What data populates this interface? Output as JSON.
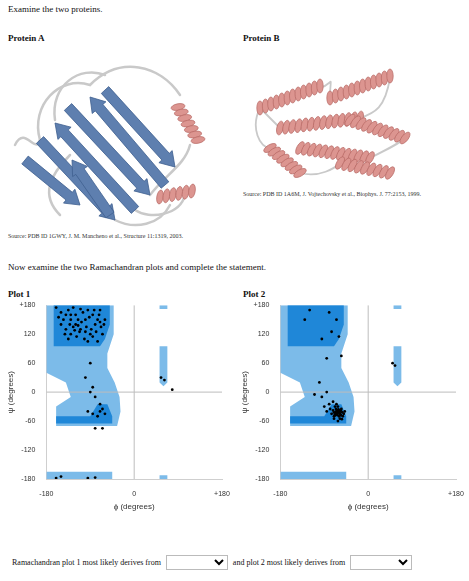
{
  "header": {
    "instruction": "Examine the two proteins."
  },
  "proteins": [
    {
      "label": "Protein A",
      "source": "Source: PDB ID 1GWY, J. M. Mancheno et al., Structure 11:1319, 2003."
    },
    {
      "label": "Protein B",
      "source": "Source: PDB ID 1A6M, J. Vojtechovsky et al., Biophys. J. 77:2153, 1999."
    }
  ],
  "prompt": "Now examine the two Ramachandran plots and complete the statement.",
  "chart_data": [
    {
      "type": "scatter",
      "title": "Plot 1",
      "x_label": "ϕ (degrees)",
      "y_label": "ψ (degrees)",
      "xlim": [
        -180,
        180
      ],
      "ylim": [
        -180,
        180
      ],
      "xticks": [
        -180,
        0,
        {
          "value": 180,
          "label": "+180"
        }
      ],
      "yticks": [
        {
          "value": 180,
          "label": "+180"
        },
        120,
        60,
        0,
        -60,
        -120,
        -180
      ],
      "grid": false,
      "marker": "circle",
      "color": "#000000",
      "x": [
        -140,
        -130,
        -120,
        -110,
        -100,
        -90,
        -120,
        -135,
        -80,
        -75,
        -70,
        -85,
        -95,
        -105,
        -115,
        -125,
        -145,
        -150,
        -160,
        -140,
        -130,
        -118,
        -108,
        -98,
        -88,
        -78,
        -68,
        -62,
        -72,
        -82,
        -92,
        -102,
        -112,
        -122,
        -132,
        -142,
        -150,
        -155,
        -65,
        -60,
        -100,
        -110,
        -125,
        -135,
        -85,
        -95,
        -75,
        -70,
        -130,
        -115,
        -90,
        -100,
        -85,
        -90,
        -80,
        -70,
        -65,
        -60,
        -75,
        -85,
        -95,
        -70,
        -80,
        -65,
        55,
        62,
        78,
        -160,
        -150,
        -95,
        -80
      ],
      "values": [
        160,
        150,
        140,
        130,
        125,
        120,
        160,
        170,
        140,
        150,
        145,
        160,
        170,
        165,
        150,
        135,
        150,
        165,
        175,
        130,
        120,
        115,
        145,
        135,
        130,
        125,
        135,
        140,
        160,
        170,
        155,
        110,
        125,
        128,
        140,
        120,
        140,
        155,
        120,
        150,
        150,
        172,
        175,
        110,
        115,
        105,
        105,
        170,
        160,
        138,
        60,
        30,
        10,
        0,
        -10,
        -25,
        -35,
        -45,
        -50,
        -45,
        -40,
        -40,
        -75,
        -75,
        30,
        25,
        5,
        -178,
        -175,
        -178,
        -177
      ],
      "regions": [
        {
          "color": "#7cbbe9",
          "polygons": [
            [
              [
                -180,
                180
              ],
              [
                -42,
                180
              ],
              [
                -42,
                120
              ],
              [
                -55,
                80
              ],
              [
                -55,
                50
              ],
              [
                -40,
                20
              ],
              [
                -30,
                -10
              ],
              [
                -28,
                -40
              ],
              [
                -35,
                -70
              ],
              [
                -160,
                -70
              ],
              [
                -160,
                -30
              ],
              [
                -130,
                -10
              ],
              [
                -140,
                20
              ],
              [
                -180,
                40
              ]
            ],
            [
              [
                -180,
                -180
              ],
              [
                -45,
                -180
              ],
              [
                -45,
                -165
              ],
              [
                -180,
                -165
              ]
            ],
            [
              [
                52,
                95
              ],
              [
                68,
                95
              ],
              [
                68,
                20
              ],
              [
                60,
                12
              ],
              [
                52,
                20
              ]
            ],
            [
              [
                52,
                180
              ],
              [
                68,
                180
              ],
              [
                68,
                172
              ],
              [
                52,
                172
              ]
            ],
            [
              [
                52,
                -180
              ],
              [
                68,
                -180
              ],
              [
                68,
                -172
              ],
              [
                52,
                -172
              ]
            ]
          ]
        },
        {
          "color": "#1f87d8",
          "polygons": [
            [
              [
                -165,
                180
              ],
              [
                -50,
                180
              ],
              [
                -50,
                140
              ],
              [
                -60,
                110
              ],
              [
                -70,
                95
              ],
              [
                -165,
                95
              ]
            ],
            [
              [
                -160,
                -50
              ],
              [
                -90,
                -50
              ],
              [
                -75,
                -25
              ],
              [
                -55,
                -25
              ],
              [
                -45,
                -50
              ],
              [
                -45,
                -65
              ],
              [
                -160,
                -65
              ]
            ]
          ]
        }
      ]
    },
    {
      "type": "scatter",
      "title": "Plot 2",
      "x_label": "ϕ (degrees)",
      "y_label": "ψ (degrees)",
      "xlim": [
        -180,
        180
      ],
      "ylim": [
        -180,
        180
      ],
      "xticks": [
        -180,
        0,
        {
          "value": 180,
          "label": "+180"
        }
      ],
      "yticks": [
        {
          "value": 180,
          "label": "+180"
        },
        120,
        60,
        0,
        -60,
        -120,
        -180
      ],
      "grid": false,
      "marker": "circle",
      "color": "#000000",
      "x": [
        -120,
        -130,
        -80,
        -65,
        -95,
        -75,
        -60,
        -85,
        -55,
        -100,
        -85,
        -95,
        -110,
        -65,
        -62,
        -60,
        -58,
        -66,
        -70,
        -63,
        -57,
        -55,
        -68,
        -72,
        -60,
        -64,
        -59,
        -61,
        -67,
        -53,
        -56,
        -70,
        -75,
        -78,
        -80,
        -72,
        -65,
        -62,
        -58,
        -52,
        -50,
        -62,
        -70,
        -85,
        -90,
        -60,
        -66,
        -64,
        -68,
        -56,
        -54,
        -48,
        50,
        55
      ],
      "values": [
        170,
        150,
        165,
        150,
        110,
        125,
        115,
        70,
        75,
        20,
        0,
        -10,
        -5,
        -40,
        -42,
        -38,
        -45,
        -35,
        -42,
        -47,
        -40,
        -35,
        -30,
        -38,
        -50,
        -44,
        -43,
        -36,
        -48,
        -42,
        -48,
        -50,
        -45,
        -35,
        -25,
        -20,
        -25,
        -30,
        -55,
        -50,
        -45,
        -60,
        -55,
        -40,
        -30,
        -40,
        -42,
        -38,
        -46,
        -38,
        -56,
        -40,
        60,
        55
      ],
      "regions": [
        {
          "color": "#7cbbe9",
          "polygons": [
            [
              [
                -180,
                180
              ],
              [
                -42,
                180
              ],
              [
                -42,
                120
              ],
              [
                -55,
                80
              ],
              [
                -55,
                50
              ],
              [
                -40,
                20
              ],
              [
                -30,
                -10
              ],
              [
                -28,
                -40
              ],
              [
                -35,
                -70
              ],
              [
                -160,
                -70
              ],
              [
                -160,
                -30
              ],
              [
                -130,
                -10
              ],
              [
                -140,
                20
              ],
              [
                -180,
                40
              ]
            ],
            [
              [
                -180,
                -180
              ],
              [
                -45,
                -180
              ],
              [
                -45,
                -165
              ],
              [
                -180,
                -165
              ]
            ],
            [
              [
                52,
                95
              ],
              [
                68,
                95
              ],
              [
                68,
                20
              ],
              [
                60,
                12
              ],
              [
                52,
                20
              ]
            ],
            [
              [
                52,
                180
              ],
              [
                68,
                180
              ],
              [
                68,
                172
              ],
              [
                52,
                172
              ]
            ],
            [
              [
                52,
                -180
              ],
              [
                68,
                -180
              ],
              [
                68,
                -172
              ],
              [
                52,
                -172
              ]
            ]
          ]
        },
        {
          "color": "#1f87d8",
          "polygons": [
            [
              [
                -165,
                180
              ],
              [
                -50,
                180
              ],
              [
                -50,
                140
              ],
              [
                -60,
                110
              ],
              [
                -70,
                95
              ],
              [
                -165,
                95
              ]
            ],
            [
              [
                -160,
                -50
              ],
              [
                -90,
                -50
              ],
              [
                -75,
                -25
              ],
              [
                -55,
                -25
              ],
              [
                -45,
                -50
              ],
              [
                -45,
                -65
              ],
              [
                -160,
                -65
              ]
            ]
          ]
        }
      ]
    }
  ],
  "statement": {
    "parts": [
      "Ramachandran plot 1 most likely derives from",
      "and plot 2 most likely derives from"
    ]
  }
}
